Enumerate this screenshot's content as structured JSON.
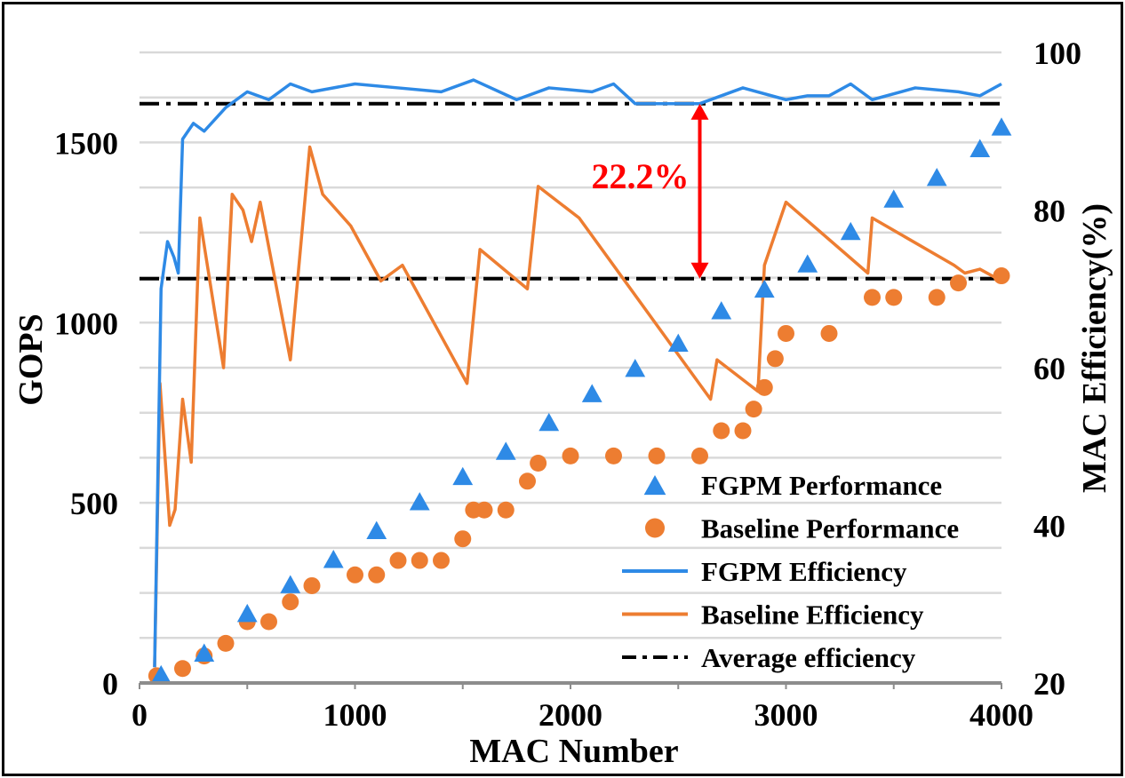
{
  "chart_data": {
    "type": "line",
    "xlabel": "MAC Number",
    "ylabel": "GOPS",
    "y2label": "MAC Efficiency(%)",
    "xlim": [
      0,
      4000
    ],
    "ylim": [
      0,
      1750
    ],
    "y2lim": [
      20,
      100
    ],
    "xticks": [
      "0",
      "1000",
      "2000",
      "3000",
      "4000"
    ],
    "yticks": [
      "0",
      "500",
      "1000",
      "1500"
    ],
    "y2ticks": [
      "20",
      "40",
      "60",
      "80",
      "100"
    ],
    "grid": "horizontal",
    "legend_position": "bottom-right",
    "series": [
      {
        "name": "FGPM Performance",
        "axis": "left",
        "marker": "triangle",
        "color": "#2E8AE6",
        "x": [
          100,
          300,
          500,
          700,
          900,
          1100,
          1300,
          1500,
          1700,
          1900,
          2100,
          2300,
          2500,
          2700,
          2900,
          3100,
          3300,
          3500,
          3700,
          3900,
          4000
        ],
        "values": [
          20,
          80,
          190,
          270,
          340,
          420,
          500,
          570,
          640,
          720,
          800,
          870,
          940,
          1030,
          1090,
          1160,
          1250,
          1340,
          1400,
          1480,
          1540
        ]
      },
      {
        "name": "Baseline Performance",
        "axis": "left",
        "marker": "circle",
        "color": "#ED7D31",
        "x": [
          80,
          200,
          300,
          400,
          500,
          600,
          700,
          800,
          1000,
          1100,
          1200,
          1300,
          1400,
          1500,
          1550,
          1600,
          1700,
          1800,
          1850,
          2000,
          2200,
          2400,
          2600,
          2700,
          2800,
          2850,
          2900,
          2950,
          3000,
          3200,
          3400,
          3500,
          3700,
          3800,
          4000
        ],
        "values": [
          20,
          40,
          75,
          110,
          170,
          170,
          225,
          270,
          300,
          300,
          340,
          340,
          340,
          400,
          480,
          480,
          480,
          560,
          610,
          630,
          630,
          630,
          630,
          700,
          700,
          760,
          820,
          900,
          970,
          970,
          1070,
          1070,
          1070,
          1110,
          1130
        ]
      },
      {
        "name": "FGPM Efficiency",
        "axis": "right",
        "color": "#2E8AE6",
        "x": [
          70,
          100,
          130,
          160,
          180,
          200,
          250,
          300,
          400,
          500,
          600,
          700,
          800,
          1000,
          1200,
          1400,
          1550,
          1750,
          1900,
          2100,
          2200,
          2300,
          2500,
          2600,
          2800,
          3000,
          3100,
          3200,
          3300,
          3400,
          3600,
          3800,
          3900,
          4000
        ],
        "values": [
          22,
          70,
          76,
          74,
          72,
          89,
          91,
          90,
          93,
          95,
          94,
          96,
          95,
          96,
          95.5,
          95,
          96.5,
          94,
          95.5,
          95,
          96,
          93.5,
          93.5,
          93.5,
          95.5,
          94,
          94.5,
          94.5,
          96,
          94,
          95.5,
          95,
          94.5,
          96
        ]
      },
      {
        "name": "Baseline Efficiency",
        "axis": "right",
        "color": "#ED7D31",
        "x": [
          70,
          95,
          140,
          165,
          200,
          240,
          280,
          390,
          430,
          480,
          520,
          560,
          700,
          790,
          850,
          980,
          1120,
          1220,
          1520,
          1580,
          1800,
          1850,
          2040,
          2650,
          2680,
          2870,
          2900,
          3000,
          3380,
          3400,
          3780,
          3830,
          3900,
          4000
        ],
        "values": [
          22,
          58,
          40,
          42,
          56,
          48,
          79,
          60,
          82,
          80,
          76,
          81,
          61,
          88,
          82,
          78,
          71,
          73,
          58,
          75,
          70,
          83,
          79,
          56,
          61,
          57,
          73,
          81,
          72,
          79,
          73,
          72,
          72.5,
          71
        ]
      },
      {
        "name": "Average efficiency",
        "axis": "right",
        "color": "#000000",
        "style": "dash-dot",
        "values": [
          93.5,
          71.3
        ]
      }
    ],
    "annotation": {
      "text": "22.2%",
      "color": "#FF0000",
      "x": 2600,
      "from": 71.3,
      "to": 93.5
    }
  }
}
